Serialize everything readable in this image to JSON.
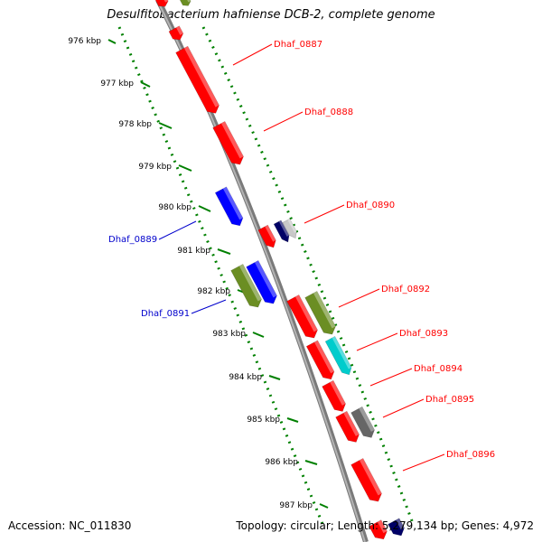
{
  "title": "Desulfitobacterium hafniense DCB-2, complete genome",
  "footer": {
    "accession": "Accession: NC_011830",
    "genome_info": "Topology: circular; Length: 5,279,134 bp; Genes: 4,972"
  },
  "colors": {
    "forward_label": "#ff0000",
    "reverse_label": "#0000cc",
    "tick": "#008000",
    "backbone": "#888888",
    "red_gene": "#ff0000",
    "blue_gene": "#0000ff",
    "olive_gene": "#6b8e23",
    "cyan_gene": "#00cccc",
    "gray_gene": "#666666",
    "navy_gene": "#000066",
    "silver_gene": "#c8c8c8"
  },
  "scale": {
    "unit": "kbp",
    "ticks": [
      "976 kbp",
      "977 kbp",
      "978 kbp",
      "979 kbp",
      "980 kbp",
      "981 kbp",
      "982 kbp",
      "983 kbp",
      "984 kbp",
      "985 kbp",
      "986 kbp",
      "987 kbp"
    ]
  },
  "gene_labels": [
    {
      "name": "Dhaf_0887",
      "strand": "forward"
    },
    {
      "name": "Dhaf_0888",
      "strand": "forward"
    },
    {
      "name": "Dhaf_0889",
      "strand": "reverse"
    },
    {
      "name": "Dhaf_0890",
      "strand": "forward"
    },
    {
      "name": "Dhaf_0891",
      "strand": "reverse"
    },
    {
      "name": "Dhaf_0892",
      "strand": "forward"
    },
    {
      "name": "Dhaf_0893",
      "strand": "forward"
    },
    {
      "name": "Dhaf_0894",
      "strand": "forward"
    },
    {
      "name": "Dhaf_0895",
      "strand": "forward"
    },
    {
      "name": "Dhaf_0896",
      "strand": "forward"
    }
  ]
}
